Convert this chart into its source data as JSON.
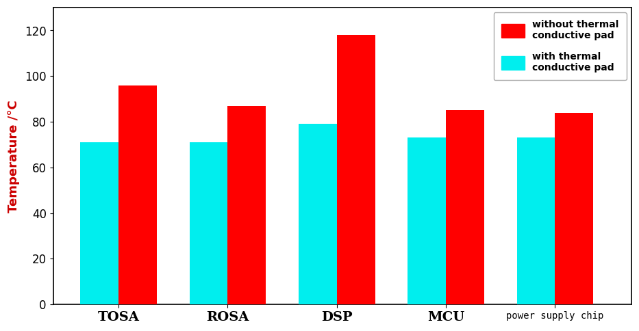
{
  "categories": [
    "TOSA",
    "ROSA",
    "DSP",
    "MCU"
  ],
  "last_category": "power supply chip",
  "without_pad": [
    96,
    87,
    118,
    85,
    84
  ],
  "with_pad": [
    71,
    71,
    79,
    73,
    73
  ],
  "color_without": "#ff0000",
  "color_with": "#00eeee",
  "ylabel": "Temperature /°C",
  "ylim": [
    0,
    130
  ],
  "yticks": [
    0,
    20,
    40,
    60,
    80,
    100,
    120
  ],
  "legend_without": "without thermal\nconductive pad",
  "legend_with": "with thermal\nconductive pad",
  "bar_width": 0.35,
  "figsize": [
    9.33,
    4.84
  ],
  "dpi": 100,
  "bg_color": "#ffffff",
  "axis_color": "#000000",
  "tick_color": "#000000",
  "label_color": "#000000",
  "ylabel_color": "#cc0000"
}
